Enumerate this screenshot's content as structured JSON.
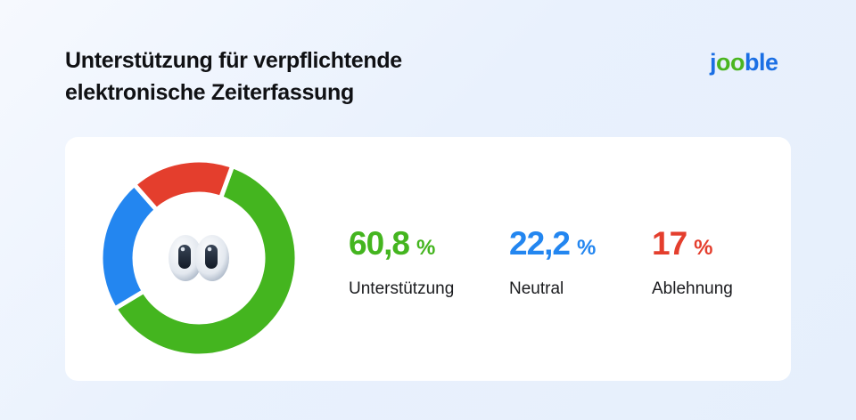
{
  "header": {
    "title_line1": "Unterstützung für verpflichtende",
    "title_line2": "elektronische Zeiterfassung"
  },
  "logo": {
    "part1": "j",
    "part2": "oo",
    "part3": "ble"
  },
  "center_icon": "eyes-emoji",
  "stats": [
    {
      "value": "60,8",
      "unit": "%",
      "label": "Unterstützung",
      "color": "#44b51f"
    },
    {
      "value": "22,2",
      "unit": "%",
      "label": "Neutral",
      "color": "#2386f0"
    },
    {
      "value": "17",
      "unit": "%",
      "label": "Ablehnung",
      "color": "#e43e2d"
    }
  ],
  "chart_data": {
    "type": "pie",
    "subtype": "donut",
    "title": "Unterstützung für verpflichtende elektronische Zeiterfassung",
    "categories": [
      "Unterstützung",
      "Neutral",
      "Ablehnung"
    ],
    "values": [
      60.8,
      22.2,
      17
    ],
    "unit": "%",
    "colors": [
      "#44b51f",
      "#2386f0",
      "#e43e2d"
    ],
    "start_angle_deg": 20,
    "direction": "clockwise",
    "legend_position": "right",
    "center_icon": "eyes-emoji"
  }
}
